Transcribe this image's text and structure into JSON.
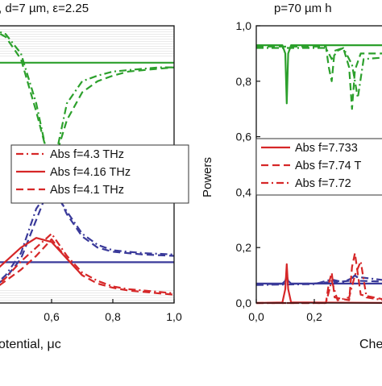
{
  "chart_data": [
    {
      "type": "line",
      "title": ", d=7 µm, ε=2.25",
      "xlabel": "otential, μc",
      "ylabel": "",
      "xlim": [
        0.4,
        1.0
      ],
      "ylim": [
        0,
        1
      ],
      "x_ticks": [
        "0,6",
        "0,8",
        "1,0"
      ],
      "legend_entries": [
        {
          "label": "Abs  f=4.3   THz",
          "style": "dash-dot",
          "color": "#d62728"
        },
        {
          "label": "Abs  f=4.16 THz",
          "style": "solid",
          "color": "#d62728"
        },
        {
          "label": "Abs  f=4.1   THz",
          "style": "dash",
          "color": "#d62728"
        }
      ],
      "series": [
        {
          "style": "solid",
          "color": "#2ca02c",
          "x": [
            0.4,
            1.0
          ],
          "y": [
            0.867,
            0.867
          ]
        },
        {
          "style": "dash",
          "color": "#2ca02c",
          "x": [
            0.4,
            0.45,
            0.5,
            0.55,
            0.6,
            0.65,
            0.7,
            0.75,
            0.8,
            0.85,
            0.9,
            0.95,
            1.0
          ],
          "y": [
            0.99,
            0.96,
            0.88,
            0.69,
            0.48,
            0.66,
            0.76,
            0.8,
            0.82,
            0.835,
            0.84,
            0.845,
            0.85
          ]
        },
        {
          "style": "dash-dot",
          "color": "#2ca02c",
          "x": [
            0.4,
            0.45,
            0.5,
            0.55,
            0.6,
            0.65,
            0.7,
            0.75,
            0.8,
            0.85,
            0.9,
            0.95,
            1.0
          ],
          "y": [
            0.99,
            0.97,
            0.9,
            0.72,
            0.46,
            0.72,
            0.8,
            0.82,
            0.835,
            0.84,
            0.845,
            0.85,
            0.85
          ]
        },
        {
          "style": "solid",
          "color": "#3a3a9a",
          "x": [
            0.4,
            1.0
          ],
          "y": [
            0.147,
            0.147
          ]
        },
        {
          "style": "dash",
          "color": "#3a3a9a",
          "x": [
            0.4,
            0.45,
            0.5,
            0.55,
            0.6,
            0.65,
            0.7,
            0.75,
            0.8,
            0.85,
            0.9,
            1.0
          ],
          "y": [
            0.05,
            0.09,
            0.16,
            0.3,
            0.44,
            0.32,
            0.24,
            0.2,
            0.185,
            0.18,
            0.175,
            0.17
          ]
        },
        {
          "style": "dash-dot",
          "color": "#3a3a9a",
          "x": [
            0.4,
            0.45,
            0.5,
            0.55,
            0.6,
            0.65,
            0.7,
            0.75,
            0.8,
            0.85,
            0.9,
            1.0
          ],
          "y": [
            0.05,
            0.1,
            0.18,
            0.34,
            0.42,
            0.33,
            0.25,
            0.21,
            0.19,
            0.185,
            0.18,
            0.175
          ]
        },
        {
          "style": "solid",
          "color": "#d62728",
          "x": [
            0.4,
            0.45,
            0.5,
            0.55,
            0.6,
            0.65,
            0.7
          ],
          "y": [
            0.1,
            0.15,
            0.2,
            0.235,
            0.22,
            0.16,
            0.1
          ]
        },
        {
          "style": "dash",
          "color": "#d62728",
          "x": [
            0.4,
            0.45,
            0.5,
            0.55,
            0.6,
            0.65,
            0.7,
            0.75,
            0.8,
            0.85,
            0.9,
            0.95,
            1.0
          ],
          "y": [
            0.04,
            0.08,
            0.12,
            0.17,
            0.23,
            0.16,
            0.1,
            0.07,
            0.055,
            0.045,
            0.04,
            0.035,
            0.03
          ]
        },
        {
          "style": "dash-dot",
          "color": "#d62728",
          "x": [
            0.4,
            0.45,
            0.5,
            0.55,
            0.6,
            0.65,
            0.7,
            0.75,
            0.8,
            0.85,
            0.9,
            0.95,
            1.0
          ],
          "y": [
            0.04,
            0.09,
            0.15,
            0.2,
            0.25,
            0.17,
            0.11,
            0.08,
            0.06,
            0.05,
            0.045,
            0.04,
            0.035
          ]
        }
      ]
    },
    {
      "type": "line",
      "title": "p=70 µm h",
      "xlabel": "Che",
      "ylabel": "Powers",
      "xlim": [
        0.0,
        0.5
      ],
      "ylim": [
        0.0,
        1.0
      ],
      "x_ticks": [
        "0,0",
        "0,2"
      ],
      "y_ticks": [
        "0,0",
        "0,2",
        "0,4",
        "0,6",
        "0,8",
        "1,0"
      ],
      "legend_entries": [
        {
          "label": "Abs  f=7.733",
          "style": "solid",
          "color": "#d62728"
        },
        {
          "label": "Abs  f=7.74 T",
          "style": "dash",
          "color": "#d62728"
        },
        {
          "label": "Abs  f=7.72",
          "style": "dash-dot",
          "color": "#d62728"
        }
      ],
      "series": [
        {
          "style": "solid",
          "color": "#2ca02c",
          "x": [
            0.0,
            0.09,
            0.1,
            0.105,
            0.11,
            0.12,
            0.5
          ],
          "y": [
            0.93,
            0.93,
            0.9,
            0.72,
            0.9,
            0.93,
            0.93
          ]
        },
        {
          "style": "dash",
          "color": "#2ca02c",
          "x": [
            0.0,
            0.24,
            0.25,
            0.26,
            0.27,
            0.3,
            0.32,
            0.33,
            0.34,
            0.36,
            0.5
          ],
          "y": [
            0.925,
            0.925,
            0.85,
            0.8,
            0.91,
            0.92,
            0.85,
            0.7,
            0.84,
            0.9,
            0.9
          ]
        },
        {
          "style": "dash-dot",
          "color": "#2ca02c",
          "x": [
            0.0,
            0.24,
            0.26,
            0.28,
            0.3,
            0.33,
            0.35,
            0.37,
            0.5
          ],
          "y": [
            0.92,
            0.92,
            0.88,
            0.91,
            0.92,
            0.86,
            0.74,
            0.88,
            0.89
          ]
        },
        {
          "style": "solid",
          "color": "#3a3a9a",
          "x": [
            0.0,
            0.09,
            0.1,
            0.105,
            0.11,
            0.12,
            0.5
          ],
          "y": [
            0.07,
            0.07,
            0.08,
            0.1,
            0.08,
            0.07,
            0.07
          ]
        },
        {
          "style": "dash",
          "color": "#3a3a9a",
          "x": [
            0.0,
            0.2,
            0.25,
            0.26,
            0.27,
            0.32,
            0.34,
            0.36,
            0.5
          ],
          "y": [
            0.068,
            0.07,
            0.075,
            0.09,
            0.075,
            0.08,
            0.1,
            0.08,
            0.075
          ]
        },
        {
          "style": "dash-dot",
          "color": "#3a3a9a",
          "x": [
            0.0,
            0.2,
            0.26,
            0.3,
            0.34,
            0.5
          ],
          "y": [
            0.065,
            0.068,
            0.085,
            0.075,
            0.095,
            0.075
          ]
        },
        {
          "style": "solid",
          "color": "#d62728",
          "x": [
            0.0,
            0.09,
            0.1,
            0.105,
            0.11,
            0.12,
            0.5
          ],
          "y": [
            0.0,
            0.002,
            0.05,
            0.14,
            0.05,
            0.002,
            0.0
          ]
        },
        {
          "style": "dash",
          "color": "#d62728",
          "x": [
            0.0,
            0.24,
            0.25,
            0.26,
            0.27,
            0.32,
            0.33,
            0.34,
            0.36,
            0.5
          ],
          "y": [
            0.0,
            0.0,
            0.07,
            0.11,
            0.02,
            0.01,
            0.13,
            0.18,
            0.03,
            0.0
          ]
        },
        {
          "style": "dash-dot",
          "color": "#d62728",
          "x": [
            0.0,
            0.24,
            0.26,
            0.28,
            0.32,
            0.34,
            0.36,
            0.38,
            0.5
          ],
          "y": [
            0.0,
            0.0,
            0.08,
            0.01,
            0.02,
            0.1,
            0.15,
            0.02,
            0.0
          ]
        }
      ]
    }
  ]
}
